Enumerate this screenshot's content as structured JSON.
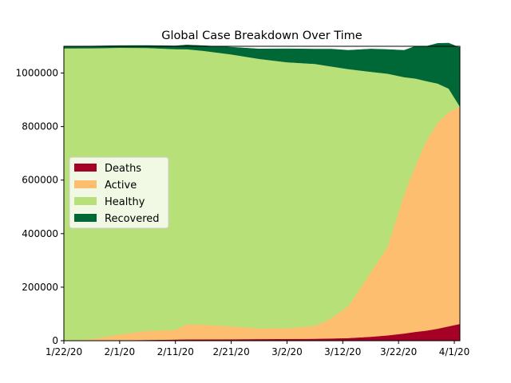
{
  "chart_data": {
    "type": "area",
    "stacked": true,
    "title": "Global Case Breakdown Over Time",
    "xlabel": "",
    "ylabel": "",
    "x_ticks": [
      "1/22/20",
      "2/1/20",
      "2/11/20",
      "2/21/20",
      "3/2/20",
      "3/12/20",
      "3/22/20",
      "4/1/20"
    ],
    "y_ticks": [
      "0",
      "200000",
      "400000",
      "600000",
      "800000",
      "1000000"
    ],
    "x_range_days": [
      0,
      71
    ],
    "ylim": [
      0,
      1100000
    ],
    "grid": false,
    "legend_position": "center-left",
    "x": [
      0,
      5,
      10,
      15,
      20,
      22,
      25,
      30,
      35,
      40,
      45,
      48,
      51,
      55,
      58,
      61,
      63,
      65,
      67,
      69,
      71
    ],
    "series": [
      {
        "name": "Deaths",
        "color": "#a50026",
        "values": [
          17,
          362,
          1770,
          3000,
          4600,
          5200,
          5400,
          5800,
          6300,
          6800,
          7500,
          8500,
          10000,
          15000,
          20000,
          27000,
          33000,
          38000,
          45000,
          54000,
          63000
        ]
      },
      {
        "name": "Active",
        "color": "#fdbf6f",
        "values": [
          600,
          5500,
          22000,
          34000,
          36000,
          56000,
          55000,
          48000,
          40000,
          40000,
          48000,
          76000,
          120000,
          240000,
          330000,
          520000,
          620000,
          710000,
          770000,
          800000,
          812000
        ]
      },
      {
        "name": "Healthy",
        "color": "#b8e079",
        "values": [
          1092000,
          1087000,
          1071000,
          1057000,
          1049000,
          1028000,
          1023000,
          1016000,
          1007000,
          994000,
          979000,
          940000,
          885000,
          750000,
          648000,
          438000,
          327000,
          222000,
          146000,
          88000,
          0
        ]
      },
      {
        "name": "Recovered",
        "color": "#006837",
        "values": [
          8000,
          8000,
          8000,
          9000,
          12000,
          16000,
          19000,
          27000,
          37000,
          50000,
          55000,
          65000,
          70000,
          85000,
          90000,
          100000,
          120000,
          130000,
          150000,
          170000,
          220000
        ]
      }
    ]
  }
}
